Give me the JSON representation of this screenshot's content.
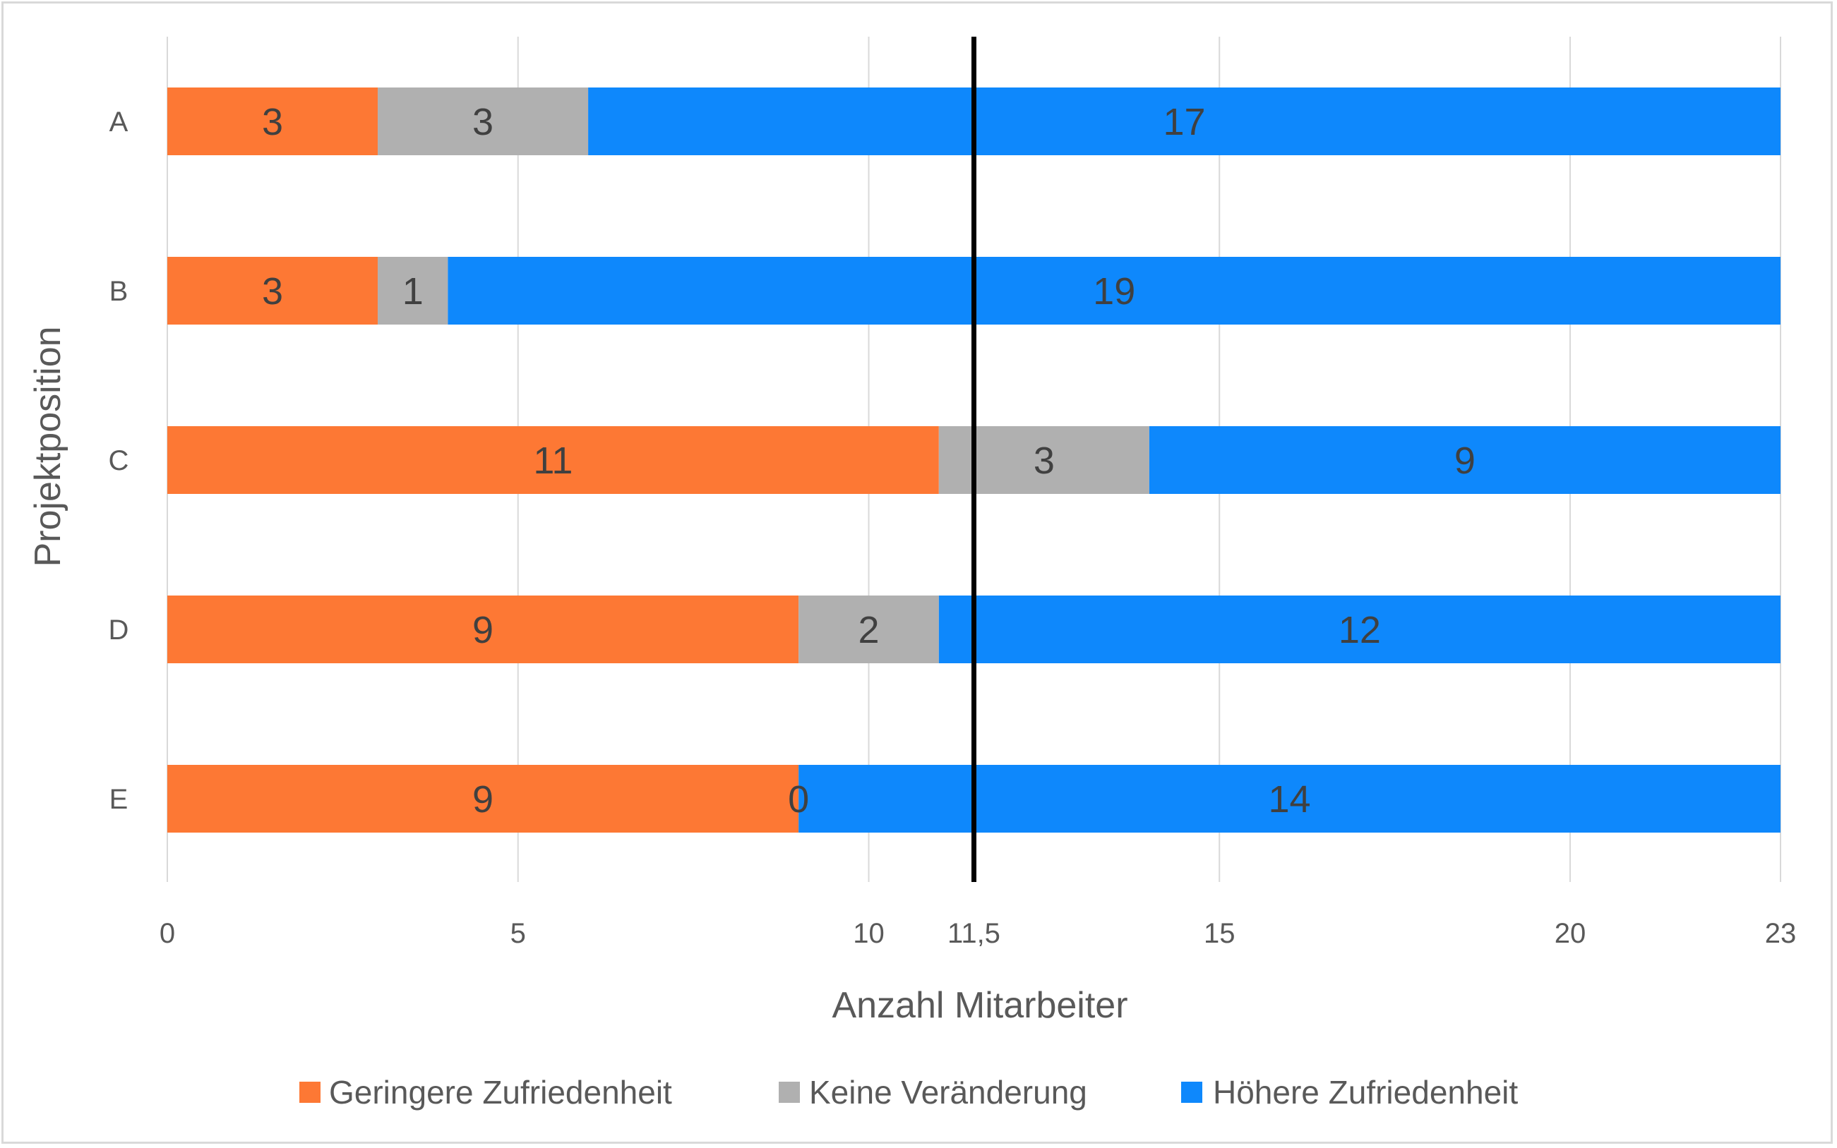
{
  "chart_data": {
    "type": "bar",
    "orientation": "horizontal",
    "stacked": true,
    "categories": [
      "A",
      "B",
      "C",
      "D",
      "E"
    ],
    "series": [
      {
        "name": "Geringere Zufriedenheit",
        "color": "#fd7834",
        "values": [
          3,
          3,
          11,
          9,
          9
        ]
      },
      {
        "name": "Keine Veränderung",
        "color": "#b0b0b0",
        "values": [
          3,
          1,
          3,
          2,
          0
        ]
      },
      {
        "name": "Höhere Zufriedenheit",
        "color": "#0e88fc",
        "values": [
          17,
          19,
          9,
          12,
          14
        ]
      }
    ],
    "x_ticks": [
      {
        "value": 0,
        "label": "0"
      },
      {
        "value": 5,
        "label": "5"
      },
      {
        "value": 10,
        "label": "10"
      },
      {
        "value": 11.5,
        "label": "11,5"
      },
      {
        "value": 15,
        "label": "15"
      },
      {
        "value": 20,
        "label": "20"
      },
      {
        "value": 23,
        "label": "23"
      }
    ],
    "gridlines_at": [
      0,
      5,
      10,
      15,
      20,
      23
    ],
    "reference_line": {
      "value": 11.5,
      "color": "#000000"
    },
    "xlim": [
      0,
      23
    ],
    "xlabel": "Anzahl Mitarbeiter",
    "ylabel": "Projektposition",
    "legend_position": "bottom",
    "grid": true
  }
}
